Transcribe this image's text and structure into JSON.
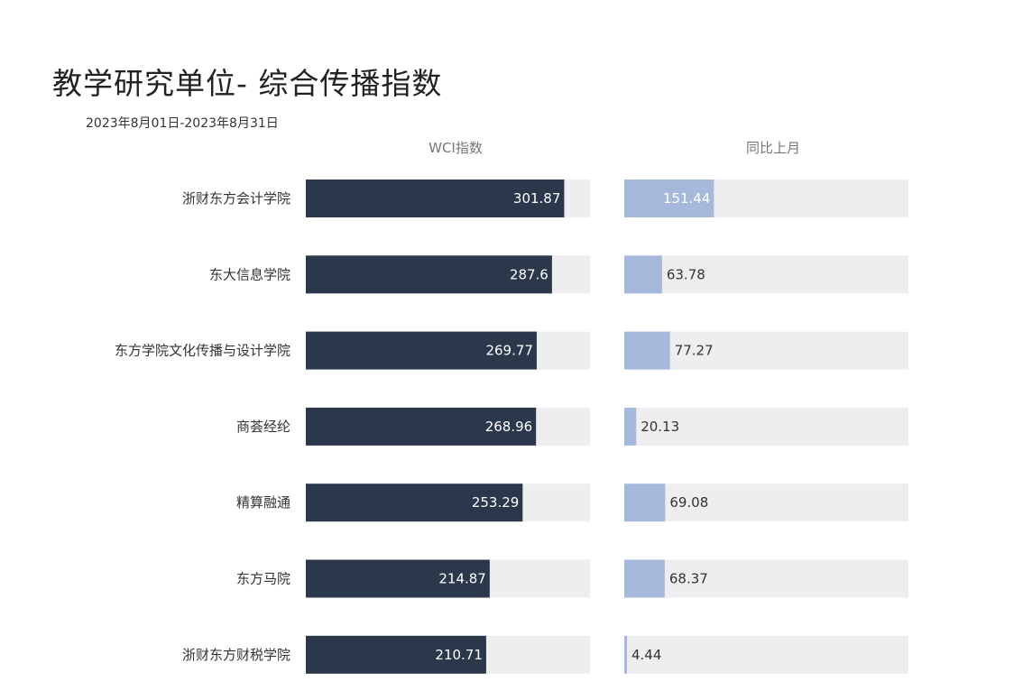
{
  "title": "教学研究单位- 综合传播指数",
  "subtitle": "2023年8月01日-2023年8月31日",
  "colors": {
    "wci_bar": "#2b374a",
    "mom_bar": "#a6b9dc",
    "track": "#eeeef1"
  },
  "chart_data": {
    "type": "bar",
    "orientation": "horizontal",
    "categories": [
      "浙财东方会计学院",
      "东大信息学院",
      "东方学院文化传播与设计学院",
      "商荟经纶",
      "精算融通",
      "东方马院",
      "浙财东方财税学院"
    ],
    "series": [
      {
        "name": "WCI指数",
        "values": [
          301.87,
          287.6,
          269.77,
          268.96,
          253.29,
          214.87,
          210.71
        ],
        "xlim": [
          0,
          332
        ]
      },
      {
        "name": "同比上月",
        "values": [
          151.44,
          63.78,
          77.27,
          20.13,
          69.08,
          68.37,
          4.44
        ],
        "xlim": [
          0,
          480
        ]
      }
    ]
  }
}
